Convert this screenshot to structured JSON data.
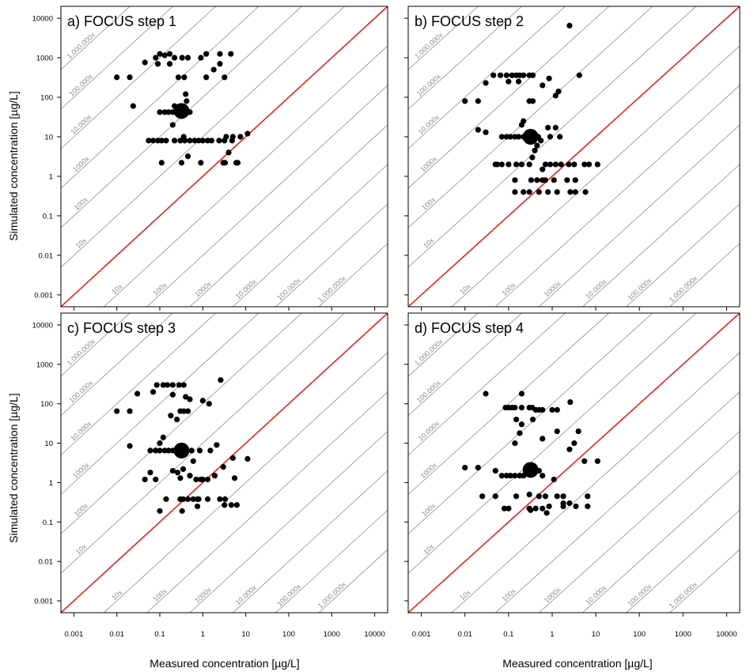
{
  "figure": {
    "ylabel": "Simulated concentration [µg/L]",
    "xlabel": "Measured concentration [µg/L]"
  },
  "axis": {
    "scale": "log10",
    "xlim": [
      0.0005,
      20000
    ],
    "ylim": [
      0.0005,
      20000
    ],
    "x_ticks": [
      0.001,
      0.01,
      0.1,
      1,
      10,
      100,
      1000,
      10000
    ],
    "x_tick_labels": [
      "0.001",
      "0.01",
      "0.1",
      "1",
      "10",
      "100",
      "1000",
      "10000"
    ],
    "y_ticks": [
      0.001,
      0.01,
      0.1,
      1,
      10,
      100,
      1000,
      10000
    ],
    "y_tick_labels": [
      "0.001",
      "0.01",
      "0.1",
      "1",
      "10",
      "100",
      "1000",
      "10000"
    ]
  },
  "reference_lines": {
    "one_to_one_color": "#e8231d",
    "grid_color": "#9a9a9a",
    "label_color": "#8c8c8c",
    "upper": [
      {
        "factor": 10,
        "label": "10x"
      },
      {
        "factor": 100,
        "label": "100x"
      },
      {
        "factor": 1000,
        "label": "1000x"
      },
      {
        "factor": 10000,
        "label": "10.000x"
      },
      {
        "factor": 100000,
        "label": "100.000x"
      },
      {
        "factor": 1000000,
        "label": "1.000.000x"
      }
    ],
    "lower": [
      {
        "factor": 10,
        "label": "10x"
      },
      {
        "factor": 100,
        "label": "100x"
      },
      {
        "factor": 1000,
        "label": "1000x"
      },
      {
        "factor": 10000,
        "label": "10.000x"
      },
      {
        "factor": 100000,
        "label": "100.000x"
      },
      {
        "factor": 1000000,
        "label": "1.000.000x"
      }
    ]
  },
  "chart_data": [
    {
      "type": "scatter",
      "title": "a) FOCUS step 1",
      "median": {
        "x": 0.32,
        "y": 45
      },
      "points": [
        [
          0.01,
          320
        ],
        [
          0.02,
          320
        ],
        [
          0.045,
          760
        ],
        [
          0.08,
          1000
        ],
        [
          0.1,
          1250
        ],
        [
          0.13,
          1150
        ],
        [
          0.17,
          1250
        ],
        [
          0.22,
          1000
        ],
        [
          0.33,
          1000
        ],
        [
          0.45,
          1000
        ],
        [
          0.9,
          1000
        ],
        [
          1.2,
          1250
        ],
        [
          2.5,
          1250
        ],
        [
          4.5,
          1250
        ],
        [
          0.09,
          700
        ],
        [
          0.17,
          700
        ],
        [
          0.27,
          320
        ],
        [
          0.37,
          320
        ],
        [
          1.2,
          320
        ],
        [
          1.8,
          500
        ],
        [
          2.5,
          700
        ],
        [
          3.2,
          320
        ],
        [
          0.4,
          120
        ],
        [
          0.024,
          60
        ],
        [
          0.2,
          20
        ],
        [
          0.36,
          10
        ],
        [
          0.1,
          42
        ],
        [
          0.13,
          42
        ],
        [
          0.16,
          42
        ],
        [
          0.2,
          42
        ],
        [
          0.25,
          42
        ],
        [
          0.42,
          42
        ],
        [
          0.5,
          42
        ],
        [
          0.22,
          60
        ],
        [
          0.42,
          80
        ],
        [
          0.055,
          8
        ],
        [
          0.07,
          8
        ],
        [
          0.09,
          8
        ],
        [
          0.11,
          8
        ],
        [
          0.14,
          8
        ],
        [
          0.22,
          8
        ],
        [
          0.3,
          8
        ],
        [
          0.38,
          8
        ],
        [
          0.5,
          8
        ],
        [
          0.65,
          8
        ],
        [
          0.8,
          8
        ],
        [
          1.0,
          8
        ],
        [
          1.3,
          8
        ],
        [
          1.6,
          8
        ],
        [
          2.4,
          8
        ],
        [
          3.2,
          8
        ],
        [
          4.8,
          8
        ],
        [
          3.5,
          10
        ],
        [
          7.5,
          10
        ],
        [
          11,
          12
        ],
        [
          0.11,
          2.2
        ],
        [
          0.32,
          2.2
        ],
        [
          0.9,
          2.2
        ],
        [
          3,
          2.2
        ],
        [
          3.3,
          2.2
        ],
        [
          6,
          2.2
        ],
        [
          6.5,
          2.2
        ],
        [
          0.45,
          3.2
        ],
        [
          4,
          4
        ],
        [
          5,
          10
        ]
      ]
    },
    {
      "type": "scatter",
      "title": "b) FOCUS step 2",
      "median": {
        "x": 0.32,
        "y": 10
      },
      "points": [
        [
          2.5,
          6500
        ],
        [
          0.045,
          360
        ],
        [
          0.065,
          360
        ],
        [
          0.09,
          360
        ],
        [
          0.12,
          360
        ],
        [
          0.15,
          360
        ],
        [
          0.18,
          360
        ],
        [
          0.22,
          360
        ],
        [
          0.3,
          360
        ],
        [
          0.36,
          360
        ],
        [
          0.85,
          300
        ],
        [
          4.2,
          360
        ],
        [
          0.03,
          230
        ],
        [
          0.1,
          250
        ],
        [
          0.17,
          250
        ],
        [
          0.6,
          200
        ],
        [
          0.01,
          80
        ],
        [
          0.02,
          80
        ],
        [
          0.3,
          80
        ],
        [
          0.36,
          80
        ],
        [
          1.2,
          110
        ],
        [
          1.4,
          140
        ],
        [
          0.2,
          20
        ],
        [
          0.22,
          25
        ],
        [
          0.8,
          17
        ],
        [
          1.2,
          17
        ],
        [
          0.02,
          15
        ],
        [
          0.03,
          13
        ],
        [
          0.07,
          10
        ],
        [
          0.09,
          10
        ],
        [
          0.11,
          10
        ],
        [
          0.14,
          10
        ],
        [
          0.17,
          10
        ],
        [
          0.22,
          10
        ],
        [
          0.28,
          10
        ],
        [
          0.48,
          10
        ],
        [
          0.55,
          8
        ],
        [
          0.9,
          10
        ],
        [
          1.5,
          10
        ],
        [
          0.45,
          6
        ],
        [
          0.4,
          4.5
        ],
        [
          0.05,
          2
        ],
        [
          0.055,
          2
        ],
        [
          0.07,
          2
        ],
        [
          0.1,
          2
        ],
        [
          0.15,
          2
        ],
        [
          0.2,
          2
        ],
        [
          0.3,
          2
        ],
        [
          0.7,
          2
        ],
        [
          0.9,
          2
        ],
        [
          1.2,
          2
        ],
        [
          1.6,
          2
        ],
        [
          2.4,
          2
        ],
        [
          3.2,
          2
        ],
        [
          5.5,
          2
        ],
        [
          7,
          2
        ],
        [
          11,
          2
        ],
        [
          0.35,
          3
        ],
        [
          0.6,
          1.5
        ],
        [
          0.14,
          0.8
        ],
        [
          0.33,
          0.8
        ],
        [
          0.45,
          0.8
        ],
        [
          0.6,
          0.8
        ],
        [
          0.7,
          0.8
        ],
        [
          1.1,
          0.8
        ],
        [
          2.2,
          0.8
        ],
        [
          3.4,
          0.8
        ],
        [
          0.14,
          0.4
        ],
        [
          0.22,
          0.4
        ],
        [
          0.3,
          0.4
        ],
        [
          0.5,
          0.4
        ],
        [
          0.8,
          0.4
        ],
        [
          1.3,
          0.4
        ],
        [
          2.6,
          0.4
        ],
        [
          3.4,
          0.4
        ],
        [
          5.8,
          0.4
        ]
      ]
    },
    {
      "type": "scatter",
      "title": "c) FOCUS step 3",
      "median": {
        "x": 0.32,
        "y": 6.5
      },
      "points": [
        [
          0.085,
          300
        ],
        [
          0.12,
          300
        ],
        [
          0.15,
          300
        ],
        [
          0.2,
          300
        ],
        [
          0.28,
          300
        ],
        [
          0.36,
          300
        ],
        [
          2.6,
          400
        ],
        [
          0.03,
          180
        ],
        [
          0.07,
          200
        ],
        [
          0.2,
          170
        ],
        [
          0.4,
          150
        ],
        [
          0.5,
          130
        ],
        [
          1.0,
          120
        ],
        [
          0.01,
          65
        ],
        [
          0.02,
          65
        ],
        [
          0.3,
          65
        ],
        [
          0.36,
          65
        ],
        [
          0.45,
          65
        ],
        [
          1.4,
          100
        ],
        [
          0.18,
          50
        ],
        [
          0.25,
          40
        ],
        [
          0.12,
          14
        ],
        [
          0.1,
          10
        ],
        [
          0.02,
          8.5
        ],
        [
          0.06,
          6.5
        ],
        [
          0.08,
          6.5
        ],
        [
          0.1,
          6.5
        ],
        [
          0.13,
          6.5
        ],
        [
          0.16,
          6.5
        ],
        [
          0.2,
          6.5
        ],
        [
          0.55,
          6.5
        ],
        [
          0.85,
          6.5
        ],
        [
          1.5,
          6.5
        ],
        [
          2.1,
          9
        ],
        [
          0.6,
          3.5
        ],
        [
          0.35,
          2.2
        ],
        [
          0.045,
          1.2
        ],
        [
          0.06,
          1.8
        ],
        [
          0.08,
          1.2
        ],
        [
          0.2,
          2
        ],
        [
          0.26,
          1.8
        ],
        [
          0.3,
          1.3
        ],
        [
          0.5,
          1.5
        ],
        [
          0.7,
          1.2
        ],
        [
          0.9,
          1.2
        ],
        [
          1.0,
          1.2
        ],
        [
          1.3,
          1.2
        ],
        [
          1.9,
          1.5
        ],
        [
          5,
          4.2
        ],
        [
          5.5,
          1.3
        ],
        [
          11,
          4
        ],
        [
          3,
          2.5
        ],
        [
          0.14,
          0.38
        ],
        [
          0.3,
          0.38
        ],
        [
          0.35,
          0.38
        ],
        [
          0.45,
          0.38
        ],
        [
          0.6,
          0.38
        ],
        [
          0.75,
          0.38
        ],
        [
          0.8,
          0.38
        ],
        [
          1.3,
          0.38
        ],
        [
          2.5,
          0.38
        ],
        [
          3.3,
          0.38
        ],
        [
          0.1,
          0.19
        ],
        [
          0.33,
          0.19
        ],
        [
          3.2,
          0.27
        ],
        [
          4.6,
          0.27
        ],
        [
          6.2,
          0.27
        ],
        [
          0.75,
          0.25
        ]
      ]
    },
    {
      "type": "scatter",
      "title": "d) FOCUS step 4",
      "median": {
        "x": 0.32,
        "y": 2.1
      },
      "points": [
        [
          0.03,
          180
        ],
        [
          0.2,
          180
        ],
        [
          2.6,
          110
        ],
        [
          0.085,
          80
        ],
        [
          0.1,
          80
        ],
        [
          0.12,
          80
        ],
        [
          0.14,
          80
        ],
        [
          0.2,
          80
        ],
        [
          0.3,
          80
        ],
        [
          0.35,
          80
        ],
        [
          0.42,
          70
        ],
        [
          0.5,
          70
        ],
        [
          0.6,
          70
        ],
        [
          1.0,
          70
        ],
        [
          1.3,
          70
        ],
        [
          0.15,
          40
        ],
        [
          0.36,
          40
        ],
        [
          0.2,
          30
        ],
        [
          0.18,
          18
        ],
        [
          0.6,
          13
        ],
        [
          0.14,
          10
        ],
        [
          1.3,
          20
        ],
        [
          4,
          20
        ],
        [
          0.01,
          2.4
        ],
        [
          0.02,
          2.4
        ],
        [
          0.05,
          2
        ],
        [
          0.07,
          1.5
        ],
        [
          0.09,
          1.5
        ],
        [
          0.11,
          1.5
        ],
        [
          0.14,
          1.5
        ],
        [
          0.18,
          1.5
        ],
        [
          0.22,
          1.5
        ],
        [
          0.5,
          2
        ],
        [
          0.6,
          1.5
        ],
        [
          2.5,
          7
        ],
        [
          3.2,
          10
        ],
        [
          5.5,
          3.5
        ],
        [
          11,
          3.5
        ],
        [
          1.1,
          1.2
        ],
        [
          0.025,
          0.45
        ],
        [
          0.05,
          0.45
        ],
        [
          0.15,
          0.45
        ],
        [
          0.3,
          0.5
        ],
        [
          0.5,
          0.45
        ],
        [
          0.7,
          0.45
        ],
        [
          1.3,
          0.45
        ],
        [
          1.8,
          0.45
        ],
        [
          6.5,
          0.45
        ],
        [
          1.8,
          0.3
        ],
        [
          0.08,
          0.22
        ],
        [
          0.1,
          0.22
        ],
        [
          0.3,
          0.22
        ],
        [
          0.42,
          0.22
        ],
        [
          0.6,
          0.22
        ],
        [
          0.75,
          0.17
        ],
        [
          0.85,
          0.25
        ],
        [
          1.8,
          0.25
        ],
        [
          2.5,
          0.3
        ],
        [
          3.5,
          0.25
        ],
        [
          6.5,
          0.25
        ],
        [
          0.32,
          0.2
        ]
      ]
    }
  ]
}
